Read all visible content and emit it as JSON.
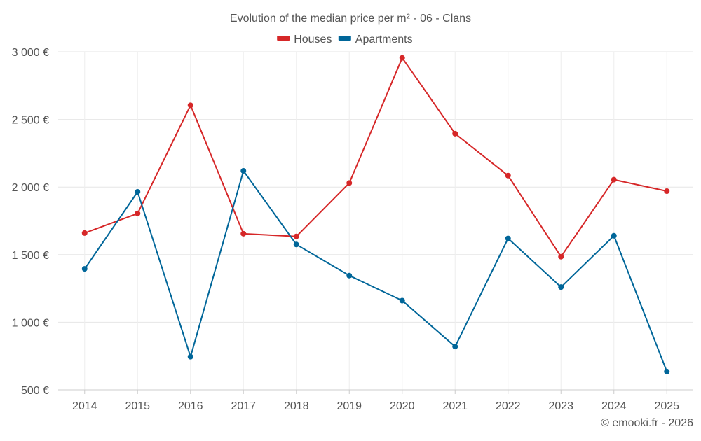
{
  "chart_data": {
    "type": "line",
    "title": "Evolution of the median price per m² - 06 - Clans",
    "categories": [
      "2014",
      "2015",
      "2016",
      "2017",
      "2018",
      "2019",
      "2020",
      "2021",
      "2022",
      "2023",
      "2024",
      "2025"
    ],
    "series": [
      {
        "name": "Houses",
        "color": "#d62728",
        "values": [
          1660,
          1805,
          2605,
          1655,
          1635,
          2030,
          2955,
          2395,
          2085,
          1485,
          2055,
          1970
        ]
      },
      {
        "name": "Apartments",
        "color": "#006699",
        "values": [
          1395,
          1965,
          745,
          2120,
          1575,
          1345,
          1160,
          820,
          1620,
          1260,
          1640,
          635
        ]
      }
    ],
    "ylim": [
      500,
      3000
    ],
    "yticks": [
      500,
      1000,
      1500,
      2000,
      2500,
      3000
    ],
    "ytick_labels": [
      "500 €",
      "1 000 €",
      "1 500 €",
      "2 000 €",
      "2 500 €",
      "3 000 €"
    ],
    "xlabel": "",
    "ylabel": "",
    "grid": true,
    "legend": "top-center"
  },
  "credit": "© emooki.fr - 2026"
}
